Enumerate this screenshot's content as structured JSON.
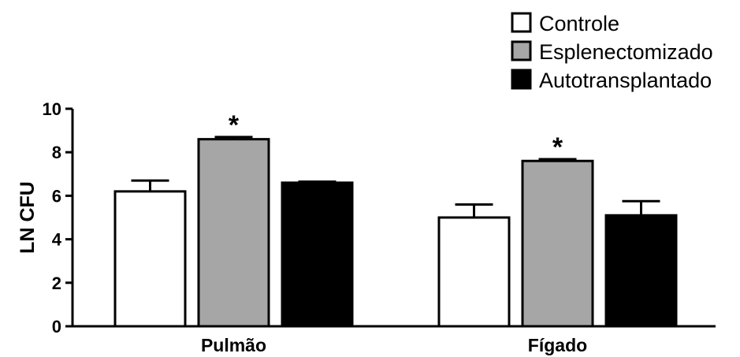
{
  "chart_data": {
    "type": "bar",
    "categories": [
      "Pulmão",
      "Fígado"
    ],
    "series": [
      {
        "name": "Controle",
        "values": [
          6.2,
          5.0
        ],
        "errors": [
          0.5,
          0.6
        ],
        "color": "#ffffff"
      },
      {
        "name": "Esplenectomizado",
        "values": [
          8.6,
          7.6
        ],
        "errors": [
          0.1,
          0.08
        ],
        "color": "#a6a6a6"
      },
      {
        "name": "Autotransplantado",
        "values": [
          6.6,
          5.1
        ],
        "errors": [
          0.05,
          0.65
        ],
        "color": "#000000"
      }
    ],
    "significance": [
      {
        "category_index": 0,
        "series_index": 1,
        "label": "*"
      },
      {
        "category_index": 1,
        "series_index": 1,
        "label": "*"
      }
    ],
    "title": "",
    "xlabel": "",
    "ylabel": "LN CFU",
    "ylim": [
      0,
      10
    ],
    "yticks": [
      0,
      2,
      4,
      6,
      8,
      10
    ],
    "legend_position": "top-right",
    "grid": false
  }
}
